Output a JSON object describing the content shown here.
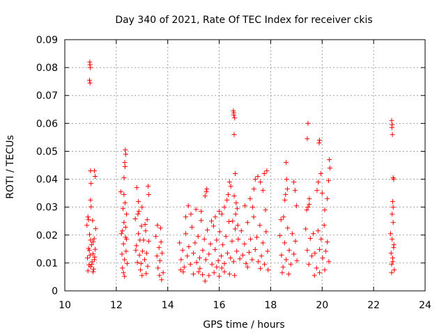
{
  "chart_data": {
    "type": "scatter",
    "title": "Day 340 of 2021, Rate Of TEC Index for receiver ckis",
    "xlabel": "GPS time / hours",
    "ylabel": "ROTI / TECUs",
    "xlim": [
      10,
      24
    ],
    "ylim": [
      0,
      0.09
    ],
    "xticks": [
      10,
      12,
      14,
      16,
      18,
      20,
      22,
      24
    ],
    "yticks": [
      0,
      0.01,
      0.02,
      0.03,
      0.04,
      0.05,
      0.06,
      0.07,
      0.08,
      0.09
    ],
    "xtick_labels": [
      "10",
      "12",
      "14",
      "16",
      "18",
      "20",
      "22",
      "24"
    ],
    "ytick_labels": [
      "0",
      "0.01",
      "0.02",
      "0.03",
      "0.04",
      "0.05",
      "0.06",
      "0.07",
      "0.08",
      "0.09"
    ],
    "grid": true,
    "marker": "+",
    "marker_color": "#ff0000",
    "series": [
      {
        "points": [
          [
            10.86,
            0.0235
          ],
          [
            10.88,
            0.0118
          ],
          [
            10.9,
            0.0072
          ],
          [
            10.92,
            0.0152
          ],
          [
            10.94,
            0.0093
          ],
          [
            10.96,
            0.0202
          ],
          [
            10.98,
            0.0128
          ],
          [
            11.0,
            0.0086
          ],
          [
            11.02,
            0.0301
          ],
          [
            11.04,
            0.0165
          ],
          [
            11.06,
            0.0104
          ],
          [
            11.08,
            0.0252
          ],
          [
            11.1,
            0.0133
          ],
          [
            11.12,
            0.0078
          ],
          [
            11.14,
            0.0187
          ],
          [
            11.16,
            0.0121
          ],
          [
            11.18,
            0.0149
          ],
          [
            11.2,
            0.0223
          ],
          [
            10.9,
            0.0265
          ],
          [
            11.0,
            0.0182
          ],
          [
            11.05,
            0.0095
          ],
          [
            11.1,
            0.0068
          ],
          [
            11.15,
            0.0112
          ],
          [
            10.95,
            0.0145
          ],
          [
            10.97,
            0.082
          ],
          [
            10.98,
            0.081
          ],
          [
            10.99,
            0.08
          ],
          [
            10.96,
            0.0755
          ],
          [
            10.98,
            0.0745
          ],
          [
            11.0,
            0.043
          ],
          [
            11.15,
            0.043
          ],
          [
            11.18,
            0.041
          ],
          [
            11.02,
            0.0385
          ],
          [
            11.0,
            0.0325
          ],
          [
            10.92,
            0.0255
          ],
          [
            11.1,
            0.0175
          ],
          [
            12.18,
            0.0355
          ],
          [
            12.2,
            0.0205
          ],
          [
            12.22,
            0.0132
          ],
          [
            12.24,
            0.0082
          ],
          [
            12.26,
            0.0295
          ],
          [
            12.28,
            0.0168
          ],
          [
            12.3,
            0.0245
          ],
          [
            12.32,
            0.0112
          ],
          [
            12.34,
            0.0315
          ],
          [
            12.36,
            0.0192
          ],
          [
            12.38,
            0.0142
          ],
          [
            12.4,
            0.0275
          ],
          [
            12.42,
            0.0098
          ],
          [
            12.24,
            0.0215
          ],
          [
            12.3,
            0.0345
          ],
          [
            12.36,
            0.0228
          ],
          [
            12.35,
            0.0505
          ],
          [
            12.37,
            0.049
          ],
          [
            12.33,
            0.046
          ],
          [
            12.34,
            0.0445
          ],
          [
            12.3,
            0.0405
          ],
          [
            12.28,
            0.0065
          ],
          [
            12.32,
            0.0052
          ],
          [
            12.4,
            0.0185
          ],
          [
            12.74,
            0.0258
          ],
          [
            12.78,
            0.0162
          ],
          [
            12.82,
            0.0102
          ],
          [
            12.86,
            0.0205
          ],
          [
            12.9,
            0.0128
          ],
          [
            12.94,
            0.0075
          ],
          [
            12.98,
            0.0232
          ],
          [
            13.02,
            0.0142
          ],
          [
            13.06,
            0.0182
          ],
          [
            13.1,
            0.0112
          ],
          [
            13.14,
            0.0215
          ],
          [
            13.18,
            0.0135
          ],
          [
            13.22,
            0.0088
          ],
          [
            13.26,
            0.0178
          ],
          [
            12.88,
            0.0285
          ],
          [
            12.92,
            0.0182
          ],
          [
            12.8,
            0.037
          ],
          [
            12.86,
            0.032
          ],
          [
            12.84,
            0.0275
          ],
          [
            13.0,
            0.03
          ],
          [
            13.24,
            0.0375
          ],
          [
            13.26,
            0.0345
          ],
          [
            13.2,
            0.0255
          ],
          [
            13.0,
            0.0055
          ],
          [
            12.96,
            0.0098
          ],
          [
            13.12,
            0.0238
          ],
          [
            13.16,
            0.0062
          ],
          [
            12.76,
            0.0145
          ],
          [
            13.54,
            0.0195
          ],
          [
            13.58,
            0.0125
          ],
          [
            13.62,
            0.0082
          ],
          [
            13.66,
            0.0155
          ],
          [
            13.7,
            0.0108
          ],
          [
            13.74,
            0.0175
          ],
          [
            13.78,
            0.0135
          ],
          [
            13.82,
            0.0065
          ],
          [
            13.6,
            0.0235
          ],
          [
            13.72,
            0.0225
          ],
          [
            13.76,
            0.004
          ],
          [
            13.68,
            0.0055
          ],
          [
            14.46,
            0.0172
          ],
          [
            14.52,
            0.0112
          ],
          [
            14.58,
            0.0145
          ],
          [
            14.64,
            0.0085
          ],
          [
            14.7,
            0.0205
          ],
          [
            14.76,
            0.0125
          ],
          [
            14.82,
            0.0158
          ],
          [
            14.88,
            0.0095
          ],
          [
            14.94,
            0.0228
          ],
          [
            15.0,
            0.0135
          ],
          [
            15.06,
            0.0172
          ],
          [
            15.12,
            0.0102
          ],
          [
            15.18,
            0.0195
          ],
          [
            15.24,
            0.0118
          ],
          [
            15.3,
            0.0252
          ],
          [
            15.36,
            0.0145
          ],
          [
            15.42,
            0.0185
          ],
          [
            15.48,
            0.0112
          ],
          [
            15.54,
            0.0218
          ],
          [
            15.6,
            0.0132
          ],
          [
            15.66,
            0.0168
          ],
          [
            15.72,
            0.0095
          ],
          [
            15.78,
            0.0232
          ],
          [
            15.84,
            0.0148
          ],
          [
            15.9,
            0.0182
          ],
          [
            15.96,
            0.0108
          ],
          [
            16.02,
            0.0212
          ],
          [
            16.08,
            0.0125
          ],
          [
            16.14,
            0.0165
          ],
          [
            16.2,
            0.0098
          ],
          [
            16.26,
            0.0195
          ],
          [
            16.32,
            0.0135
          ],
          [
            16.38,
            0.0248
          ],
          [
            16.44,
            0.0118
          ],
          [
            16.5,
            0.0178
          ],
          [
            16.56,
            0.0105
          ],
          [
            16.62,
            0.0222
          ],
          [
            16.68,
            0.0142
          ],
          [
            16.74,
            0.0185
          ],
          [
            16.8,
            0.0115
          ],
          [
            14.7,
            0.0265
          ],
          [
            14.9,
            0.0275
          ],
          [
            15.1,
            0.0292
          ],
          [
            15.3,
            0.0285
          ],
          [
            15.45,
            0.034
          ],
          [
            15.5,
            0.0355
          ],
          [
            15.52,
            0.0365
          ],
          [
            15.7,
            0.025
          ],
          [
            15.85,
            0.0265
          ],
          [
            16.0,
            0.0285
          ],
          [
            16.1,
            0.0275
          ],
          [
            16.2,
            0.03
          ],
          [
            16.3,
            0.0325
          ],
          [
            16.35,
            0.0345
          ],
          [
            16.4,
            0.039
          ],
          [
            16.45,
            0.0375
          ],
          [
            14.8,
            0.0305
          ],
          [
            15.0,
            0.006
          ],
          [
            15.2,
            0.0068
          ],
          [
            15.35,
            0.0058
          ],
          [
            15.45,
            0.0035
          ],
          [
            15.6,
            0.0055
          ],
          [
            15.8,
            0.0065
          ],
          [
            16.0,
            0.0052
          ],
          [
            16.2,
            0.0068
          ],
          [
            16.4,
            0.006
          ],
          [
            16.6,
            0.0055
          ],
          [
            14.5,
            0.0075
          ],
          [
            14.6,
            0.0068
          ],
          [
            15.9,
            0.0085
          ],
          [
            16.1,
            0.0082
          ],
          [
            15.25,
            0.008
          ],
          [
            16.55,
            0.0645
          ],
          [
            16.57,
            0.0638
          ],
          [
            16.56,
            0.063
          ],
          [
            16.6,
            0.062
          ],
          [
            16.58,
            0.056
          ],
          [
            16.62,
            0.042
          ],
          [
            16.58,
            0.034
          ],
          [
            16.66,
            0.0315
          ],
          [
            16.7,
            0.0295
          ],
          [
            16.52,
            0.025
          ],
          [
            16.64,
            0.0275
          ],
          [
            16.72,
            0.0235
          ],
          [
            16.86,
            0.0215
          ],
          [
            16.92,
            0.0128
          ],
          [
            16.98,
            0.0168
          ],
          [
            17.04,
            0.0098
          ],
          [
            17.1,
            0.0245
          ],
          [
            17.16,
            0.0138
          ],
          [
            17.22,
            0.0185
          ],
          [
            17.28,
            0.0112
          ],
          [
            17.34,
            0.0265
          ],
          [
            17.4,
            0.0148
          ],
          [
            17.46,
            0.0192
          ],
          [
            17.52,
            0.0105
          ],
          [
            17.58,
            0.0235
          ],
          [
            17.64,
            0.0125
          ],
          [
            17.7,
            0.0172
          ],
          [
            17.76,
            0.0095
          ],
          [
            17.82,
            0.0212
          ],
          [
            17.88,
            0.0142
          ],
          [
            17.0,
            0.0305
          ],
          [
            17.2,
            0.033
          ],
          [
            17.35,
            0.0365
          ],
          [
            17.4,
            0.04
          ],
          [
            17.6,
            0.039
          ],
          [
            17.7,
            0.036
          ],
          [
            17.75,
            0.042
          ],
          [
            17.85,
            0.043
          ],
          [
            17.5,
            0.041
          ],
          [
            17.3,
            0.03
          ],
          [
            17.8,
            0.029
          ],
          [
            17.6,
            0.008
          ],
          [
            17.9,
            0.0075
          ],
          [
            17.1,
            0.0085
          ],
          [
            18.36,
            0.0198
          ],
          [
            18.42,
            0.0128
          ],
          [
            18.48,
            0.0085
          ],
          [
            18.54,
            0.0172
          ],
          [
            18.6,
            0.0112
          ],
          [
            18.66,
            0.0225
          ],
          [
            18.72,
            0.0145
          ],
          [
            18.78,
            0.0095
          ],
          [
            18.84,
            0.0205
          ],
          [
            18.9,
            0.0132
          ],
          [
            18.96,
            0.0178
          ],
          [
            19.02,
            0.0108
          ],
          [
            18.4,
            0.0255
          ],
          [
            18.5,
            0.0265
          ],
          [
            18.6,
            0.046
          ],
          [
            18.62,
            0.04
          ],
          [
            18.65,
            0.0365
          ],
          [
            18.58,
            0.0345
          ],
          [
            18.55,
            0.0325
          ],
          [
            18.9,
            0.039
          ],
          [
            18.95,
            0.036
          ],
          [
            19.0,
            0.0305
          ],
          [
            18.7,
            0.006
          ],
          [
            18.45,
            0.0065
          ],
          [
            19.36,
            0.0222
          ],
          [
            19.42,
            0.0145
          ],
          [
            19.48,
            0.0095
          ],
          [
            19.54,
            0.0188
          ],
          [
            19.6,
            0.0125
          ],
          [
            19.66,
            0.0205
          ],
          [
            19.72,
            0.0135
          ],
          [
            19.78,
            0.0082
          ],
          [
            19.84,
            0.0215
          ],
          [
            19.9,
            0.0148
          ],
          [
            19.96,
            0.0185
          ],
          [
            20.02,
            0.0118
          ],
          [
            20.08,
            0.0235
          ],
          [
            20.14,
            0.0142
          ],
          [
            20.2,
            0.0175
          ],
          [
            20.26,
            0.0105
          ],
          [
            19.4,
            0.029
          ],
          [
            19.45,
            0.03
          ],
          [
            19.42,
            0.0545
          ],
          [
            19.45,
            0.06
          ],
          [
            19.5,
            0.033
          ],
          [
            19.8,
            0.036
          ],
          [
            19.85,
            0.039
          ],
          [
            19.88,
            0.053
          ],
          [
            19.9,
            0.054
          ],
          [
            19.95,
            0.042
          ],
          [
            20.0,
            0.035
          ],
          [
            20.1,
            0.029
          ],
          [
            20.2,
            0.033
          ],
          [
            20.28,
            0.047
          ],
          [
            20.3,
            0.044
          ],
          [
            20.25,
            0.0395
          ],
          [
            19.7,
            0.0055
          ],
          [
            19.9,
            0.0065
          ],
          [
            20.1,
            0.0075
          ],
          [
            19.5,
            0.031
          ],
          [
            22.66,
            0.0205
          ],
          [
            22.68,
            0.0135
          ],
          [
            22.7,
            0.0095
          ],
          [
            22.72,
            0.0185
          ],
          [
            22.74,
            0.0118
          ],
          [
            22.76,
            0.0245
          ],
          [
            22.78,
            0.0155
          ],
          [
            22.8,
            0.0075
          ],
          [
            22.7,
            0.061
          ],
          [
            22.72,
            0.0595
          ],
          [
            22.71,
            0.0585
          ],
          [
            22.73,
            0.056
          ],
          [
            22.76,
            0.0405
          ],
          [
            22.78,
            0.04
          ],
          [
            22.74,
            0.032
          ],
          [
            22.76,
            0.03
          ],
          [
            22.72,
            0.0275
          ],
          [
            22.7,
            0.0065
          ],
          [
            22.75,
            0.0105
          ],
          [
            22.79,
            0.0165
          ]
        ]
      }
    ]
  }
}
